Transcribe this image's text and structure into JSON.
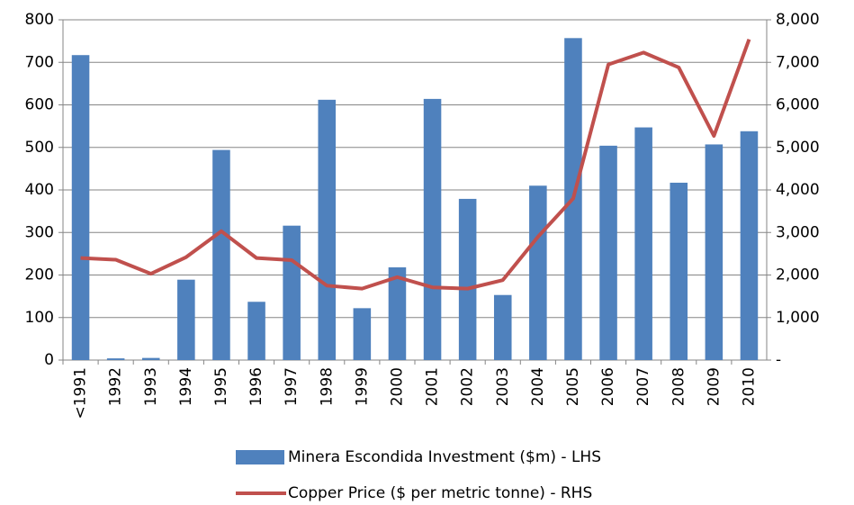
{
  "chart_data": {
    "type": "bar-line",
    "categories": [
      "<1991",
      "1992",
      "1993",
      "1994",
      "1995",
      "1996",
      "1997",
      "1998",
      "1999",
      "2000",
      "2001",
      "2002",
      "2003",
      "2004",
      "2005",
      "2006",
      "2007",
      "2008",
      "2009",
      "2010"
    ],
    "series": [
      {
        "name": "Minera Escondida Investment ($m) - LHS",
        "type": "bar",
        "color": "#4f81bd",
        "axis": "y",
        "values": [
          717,
          4,
          5,
          189,
          494,
          137,
          316,
          612,
          122,
          218,
          614,
          379,
          153,
          410,
          757,
          504,
          547,
          417,
          507,
          538
        ]
      },
      {
        "name": "Copper Price ($ per metric tonne) - RHS",
        "type": "line",
        "color": "#c0504d",
        "axis": "y2",
        "values": [
          2400,
          2360,
          2030,
          2420,
          3030,
          2400,
          2350,
          1750,
          1680,
          1950,
          1710,
          1680,
          1880,
          2900,
          3800,
          6950,
          7230,
          6880,
          5270,
          7540
        ]
      }
    ],
    "ylim": [
      0,
      800
    ],
    "yticks": [
      0,
      100,
      200,
      300,
      400,
      500,
      600,
      700,
      800
    ],
    "y2lim": [
      0,
      8000
    ],
    "y2ticks": [
      {
        "value": 0,
        "label": "-"
      },
      {
        "value": 1000,
        "label": "1,000"
      },
      {
        "value": 2000,
        "label": "2,000"
      },
      {
        "value": 3000,
        "label": "3,000"
      },
      {
        "value": 4000,
        "label": "4,000"
      },
      {
        "value": 5000,
        "label": "5,000"
      },
      {
        "value": 6000,
        "label": "6,000"
      },
      {
        "value": 7000,
        "label": "7,000"
      },
      {
        "value": 8000,
        "label": "8,000"
      }
    ],
    "grid": true,
    "legend": "bottom"
  }
}
